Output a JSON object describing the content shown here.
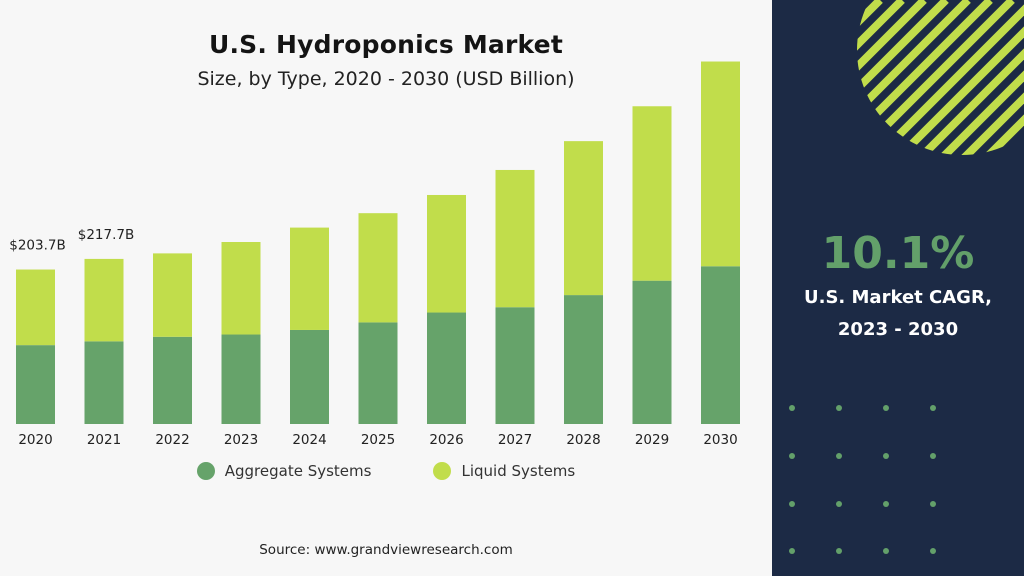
{
  "colors": {
    "aggregate": "#66a36a",
    "liquid": "#c1dd4b",
    "panel": "#1c2a45",
    "accent_text": "#63a06a",
    "stripe": "#c1dd4b",
    "dot": "#63a06a"
  },
  "highlight": {
    "value": "10.1%",
    "label_line1": "U.S. Market CAGR,",
    "label_line2": "2023 - 2030"
  },
  "source": "Source: www.grandviewresearch.com",
  "chart_data": {
    "type": "bar",
    "stacked": true,
    "title": "U.S. Hydroponics Market",
    "subtitle": "Size, by Type, 2020 - 2030 (USD Billion)",
    "categories": [
      "2020",
      "2021",
      "2022",
      "2023",
      "2024",
      "2025",
      "2026",
      "2027",
      "2028",
      "2029",
      "2030"
    ],
    "series": [
      {
        "name": "Aggregate Systems",
        "values": [
          104,
          109,
          115,
          118,
          124,
          134,
          147,
          154,
          170,
          189,
          208
        ]
      },
      {
        "name": "Liquid Systems",
        "values": [
          99.7,
          108.7,
          110,
          122,
          135,
          144,
          155,
          181,
          203,
          230,
          270
        ]
      }
    ],
    "data_labels": [
      {
        "category": "2020",
        "text": "$203.7B"
      },
      {
        "category": "2021",
        "text": "$217.7B"
      }
    ],
    "ylim": [
      0,
      480
    ],
    "legend": "bottom"
  }
}
